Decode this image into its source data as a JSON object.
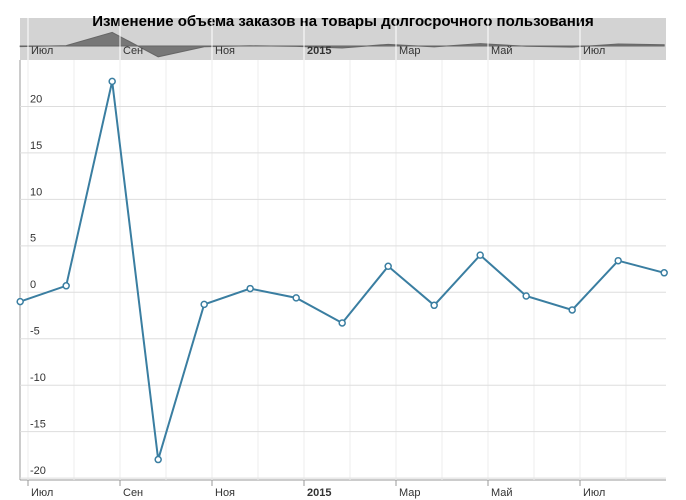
{
  "chart_data": {
    "type": "line",
    "title": "Изменение объема заказов на товары долгосрочного пользования",
    "x": [
      "2014-06",
      "2014-07",
      "2014-08",
      "2014-09",
      "2014-10",
      "2014-11",
      "2014-12",
      "2015-01",
      "2015-02",
      "2015-03",
      "2015-04",
      "2015-05",
      "2015-06",
      "2015-07",
      "2015-08"
    ],
    "series": [
      {
        "color": "#3a7ea1",
        "values": [
          -1,
          0.7,
          22.7,
          -18,
          -1.3,
          0.4,
          -0.6,
          -3.3,
          2.8,
          -1.4,
          4.0,
          -0.4,
          -1.9,
          3.4,
          2.1
        ]
      }
    ],
    "ylim": [
      -20.2,
      25
    ],
    "yticks": [
      -20,
      -15,
      -10,
      -5,
      0,
      5,
      10,
      15,
      20
    ],
    "xticks": [
      {
        "value": "2014-07",
        "label": "Июл"
      },
      {
        "value": "2014-09",
        "label": "Сен"
      },
      {
        "value": "2014-11",
        "label": "Ноя"
      },
      {
        "value": "2015-01",
        "label": "2015"
      },
      {
        "value": "2015-03",
        "label": "Мар"
      },
      {
        "value": "2015-05",
        "label": "Май"
      },
      {
        "value": "2015-07",
        "label": "Июл"
      }
    ],
    "grid": true
  }
}
